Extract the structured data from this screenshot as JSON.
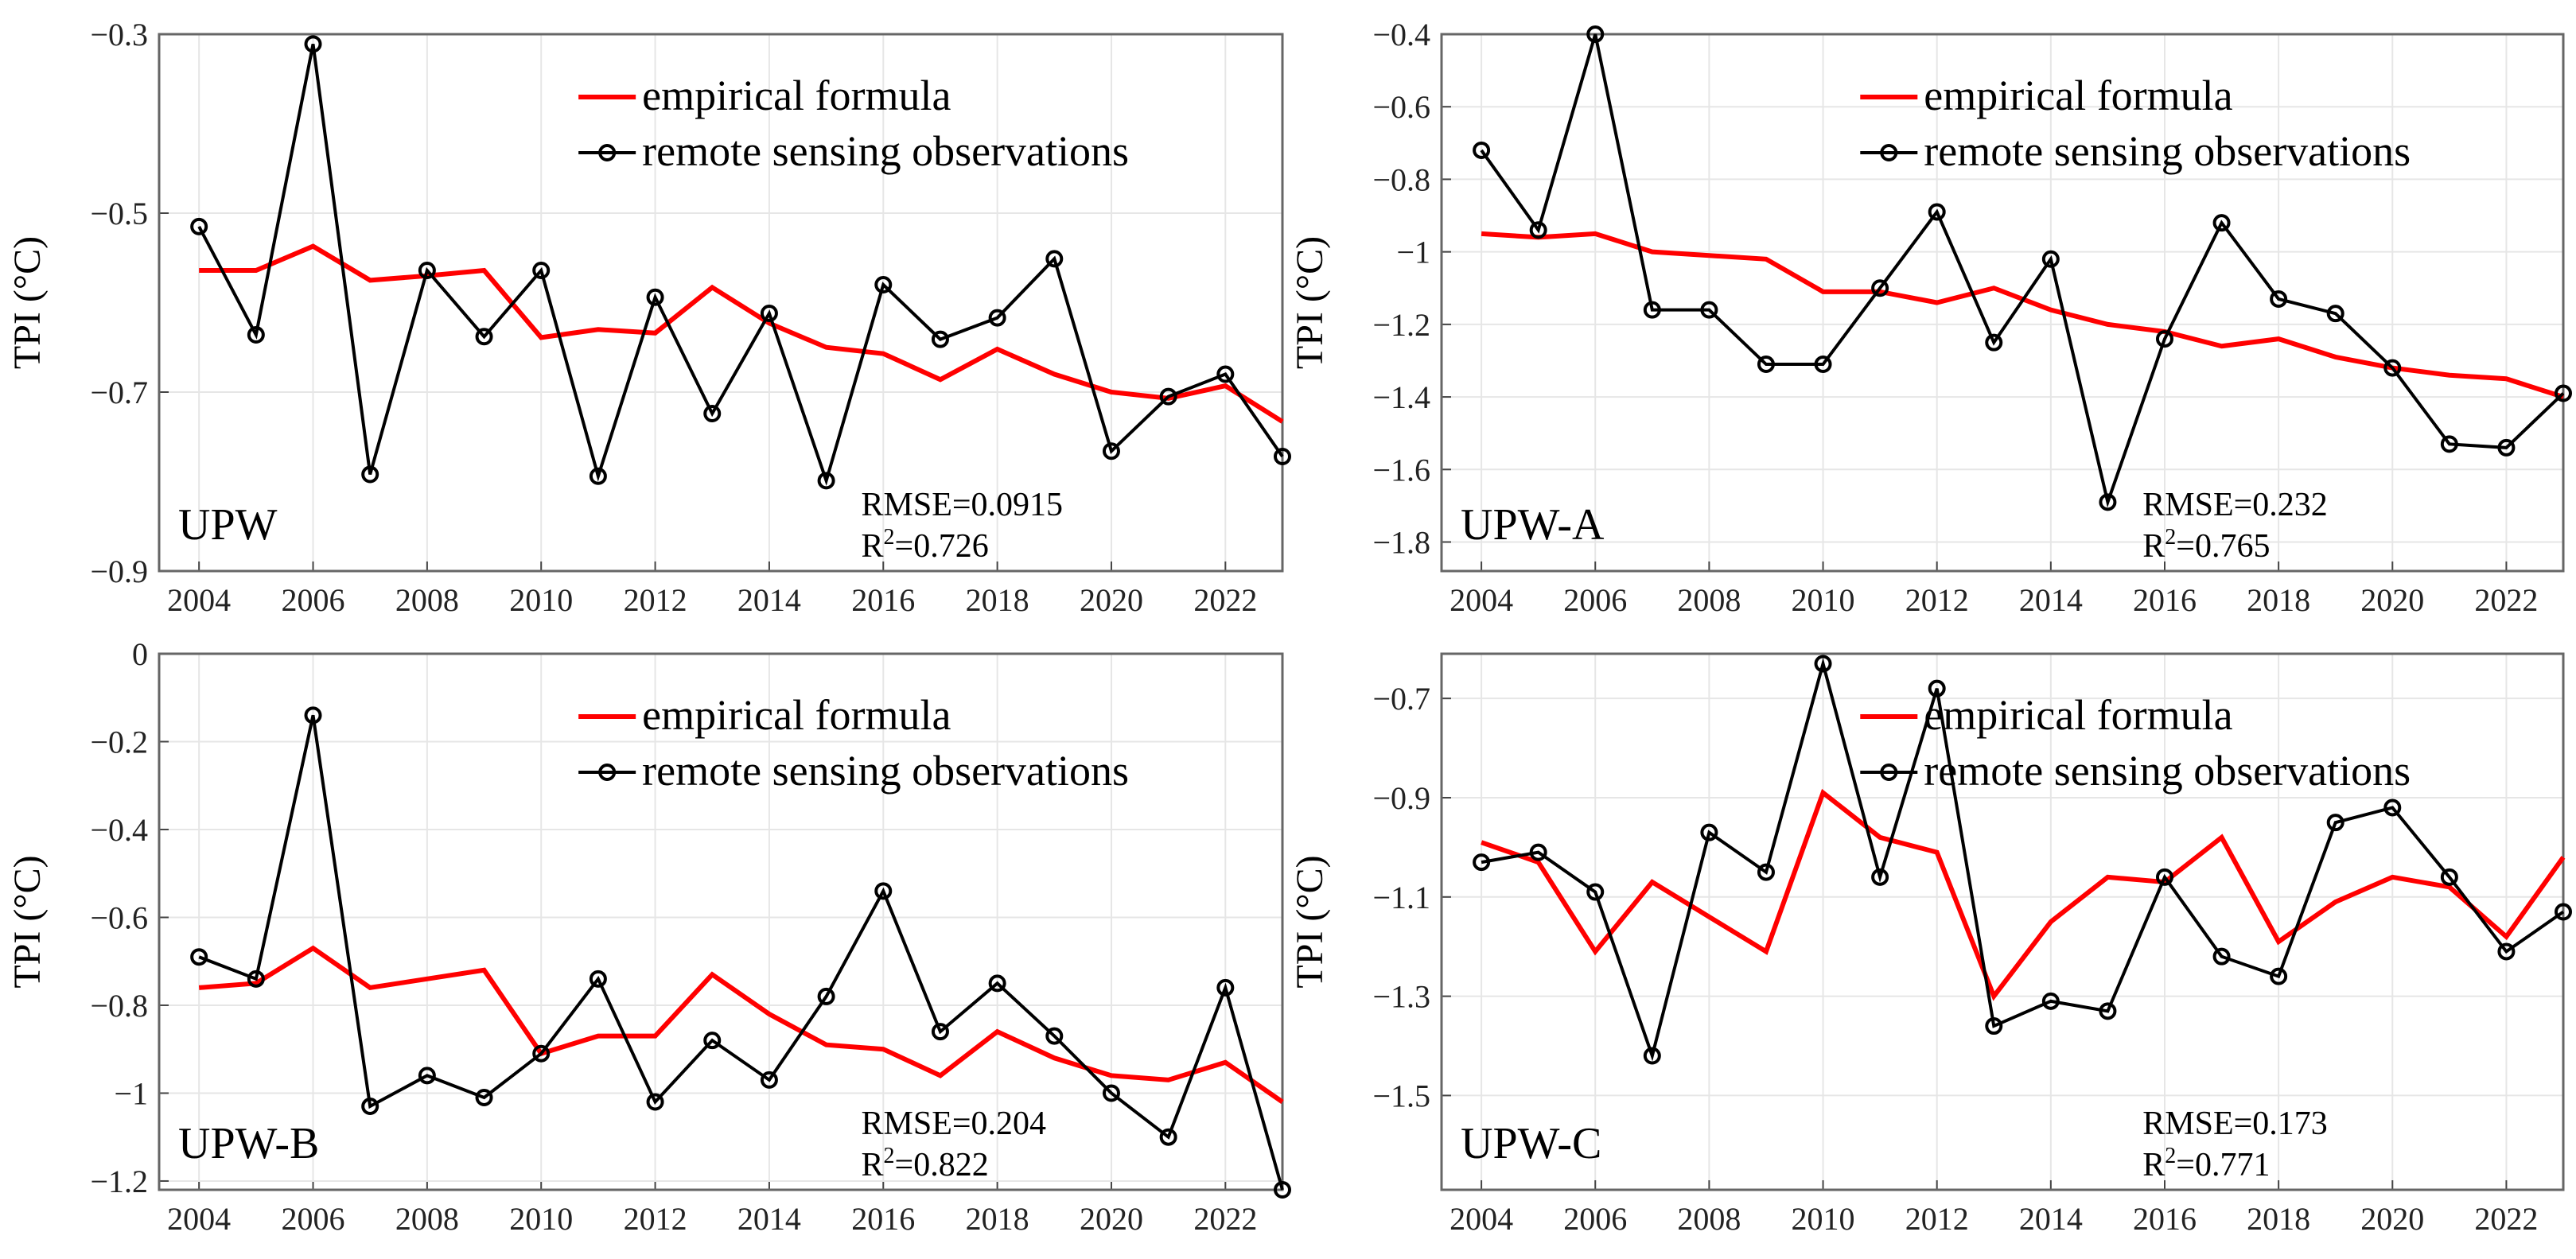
{
  "chart_data": [
    {
      "type": "line",
      "panel_label": "UPW",
      "ylabel": "TPI (°C)",
      "xlabel": "",
      "x": [
        2004,
        2005,
        2006,
        2007,
        2008,
        2009,
        2010,
        2011,
        2012,
        2013,
        2014,
        2015,
        2016,
        2017,
        2018,
        2019,
        2020,
        2021,
        2022,
        2023
      ],
      "xticks": [
        2004,
        2006,
        2008,
        2010,
        2012,
        2014,
        2016,
        2018,
        2020,
        2022
      ],
      "xlim": [
        2003.3,
        2023
      ],
      "ylim": [
        -0.9,
        -0.3
      ],
      "yticks": [
        -0.9,
        -0.7,
        -0.5,
        -0.3
      ],
      "ytick_labels": [
        "−0.9",
        "−0.7",
        "−0.5",
        "−0.3"
      ],
      "grid": true,
      "legend_position": "top-right",
      "series": [
        {
          "name": "empirical formula",
          "color": "#ff0000",
          "marker": "none",
          "values": [
            -0.564,
            -0.564,
            -0.537,
            -0.575,
            -0.57,
            -0.564,
            -0.639,
            -0.63,
            -0.634,
            -0.583,
            -0.623,
            -0.65,
            -0.657,
            -0.686,
            -0.652,
            -0.68,
            -0.7,
            -0.707,
            -0.693,
            -0.733
          ]
        },
        {
          "name": "remote sensing observations",
          "color": "#000000",
          "marker": "circle",
          "values": [
            -0.515,
            -0.636,
            -0.311,
            -0.792,
            -0.564,
            -0.638,
            -0.564,
            -0.794,
            -0.594,
            -0.724,
            -0.612,
            -0.799,
            -0.58,
            -0.641,
            -0.617,
            -0.551,
            -0.766,
            -0.705,
            -0.68,
            -0.772
          ]
        }
      ],
      "annotations": [
        "RMSE=0.0915",
        "R",
        "2",
        "=0.726"
      ]
    },
    {
      "type": "line",
      "panel_label": "UPW-A",
      "ylabel": "TPI (°C)",
      "xlabel": "",
      "x": [
        2004,
        2005,
        2006,
        2007,
        2008,
        2009,
        2010,
        2011,
        2012,
        2013,
        2014,
        2015,
        2016,
        2017,
        2018,
        2019,
        2020,
        2021,
        2022,
        2023
      ],
      "xticks": [
        2004,
        2006,
        2008,
        2010,
        2012,
        2014,
        2016,
        2018,
        2020,
        2022
      ],
      "xlim": [
        2003.3,
        2023
      ],
      "ylim": [
        -1.88,
        -0.4
      ],
      "yticks": [
        -1.8,
        -1.6,
        -1.4,
        -1.2,
        -1,
        -0.8,
        -0.6,
        -0.4
      ],
      "ytick_labels": [
        "−1.8",
        "−1.6",
        "−1.4",
        "−1.2",
        "−1",
        "−0.8",
        "−0.6",
        "−0.4"
      ],
      "grid": true,
      "legend_position": "top-right",
      "series": [
        {
          "name": "empirical formula",
          "color": "#ff0000",
          "marker": "none",
          "values": [
            -0.95,
            -0.96,
            -0.95,
            -1.0,
            -1.01,
            -1.02,
            -1.11,
            -1.11,
            -1.14,
            -1.1,
            -1.16,
            -1.2,
            -1.22,
            -1.26,
            -1.24,
            -1.29,
            -1.32,
            -1.34,
            -1.35,
            -1.4
          ]
        },
        {
          "name": "remote sensing observations",
          "color": "#000000",
          "marker": "circle",
          "values": [
            -0.72,
            -0.94,
            -0.4,
            -1.16,
            -1.16,
            -1.31,
            -1.31,
            -1.1,
            -0.89,
            -1.25,
            -1.02,
            -1.69,
            -1.24,
            -0.92,
            -1.13,
            -1.17,
            -1.32,
            -1.53,
            -1.54,
            -1.39
          ]
        }
      ],
      "annotations": [
        "RMSE=0.232",
        "R",
        "2",
        "=0.765"
      ]
    },
    {
      "type": "line",
      "panel_label": "UPW-B",
      "ylabel": "TPI (°C)",
      "xlabel": "",
      "x": [
        2004,
        2005,
        2006,
        2007,
        2008,
        2009,
        2010,
        2011,
        2012,
        2013,
        2014,
        2015,
        2016,
        2017,
        2018,
        2019,
        2020,
        2021,
        2022,
        2023
      ],
      "xticks": [
        2004,
        2006,
        2008,
        2010,
        2012,
        2014,
        2016,
        2018,
        2020,
        2022
      ],
      "xlim": [
        2003.3,
        2023
      ],
      "ylim": [
        -1.22,
        0
      ],
      "yticks": [
        -1.2,
        -1,
        -0.8,
        -0.6,
        -0.4,
        -0.2,
        0
      ],
      "ytick_labels": [
        "−1.2",
        "−1",
        "−0.8",
        "−0.6",
        "−0.4",
        "−0.2",
        "0"
      ],
      "grid": true,
      "legend_position": "top-right",
      "series": [
        {
          "name": "empirical formula",
          "color": "#ff0000",
          "marker": "none",
          "values": [
            -0.76,
            -0.75,
            -0.67,
            -0.76,
            -0.74,
            -0.72,
            -0.91,
            -0.87,
            -0.87,
            -0.73,
            -0.82,
            -0.89,
            -0.9,
            -0.96,
            -0.86,
            -0.92,
            -0.96,
            -0.97,
            -0.93,
            -1.02
          ]
        },
        {
          "name": "remote sensing observations",
          "color": "#000000",
          "marker": "circle",
          "values": [
            -0.69,
            -0.74,
            -0.14,
            -1.03,
            -0.96,
            -1.01,
            -0.91,
            -0.74,
            -1.02,
            -0.88,
            -0.97,
            -0.78,
            -0.54,
            -0.86,
            -0.75,
            -0.87,
            -1.0,
            -1.1,
            -0.76,
            -1.22
          ]
        }
      ],
      "annotations": [
        "RMSE=0.204",
        "R",
        "2",
        "=0.822"
      ]
    },
    {
      "type": "line",
      "panel_label": "UPW-C",
      "ylabel": "TPI (°C)",
      "xlabel": "",
      "x": [
        2004,
        2005,
        2006,
        2007,
        2008,
        2009,
        2010,
        2011,
        2012,
        2013,
        2014,
        2015,
        2016,
        2017,
        2018,
        2019,
        2020,
        2021,
        2022,
        2023
      ],
      "xticks": [
        2004,
        2006,
        2008,
        2010,
        2012,
        2014,
        2016,
        2018,
        2020,
        2022
      ],
      "xlim": [
        2003.3,
        2023
      ],
      "ylim": [
        -1.69,
        -0.61
      ],
      "yticks": [
        -1.5,
        -1.3,
        -1.1,
        -0.9,
        -0.7
      ],
      "ytick_labels": [
        "−1.5",
        "−1.3",
        "−1.1",
        "−0.9",
        "−0.7"
      ],
      "grid": true,
      "legend_position": "top-right",
      "series": [
        {
          "name": "empirical formula",
          "color": "#ff0000",
          "marker": "none",
          "values": [
            -0.99,
            -1.03,
            -1.21,
            -1.07,
            -1.14,
            -1.21,
            -0.89,
            -0.98,
            -1.01,
            -1.3,
            -1.15,
            -1.06,
            -1.07,
            -0.98,
            -1.19,
            -1.11,
            -1.06,
            -1.08,
            -1.18,
            -1.02
          ]
        },
        {
          "name": "remote sensing observations",
          "color": "#000000",
          "marker": "circle",
          "values": [
            -1.03,
            -1.01,
            -1.09,
            -1.42,
            -0.97,
            -1.05,
            -0.63,
            -1.06,
            -0.68,
            -1.36,
            -1.31,
            -1.33,
            -1.06,
            -1.22,
            -1.26,
            -0.95,
            -0.92,
            -1.06,
            -1.21,
            -1.13
          ]
        }
      ],
      "annotations": [
        "RMSE=0.173",
        "R",
        "2",
        "=0.771"
      ]
    }
  ]
}
